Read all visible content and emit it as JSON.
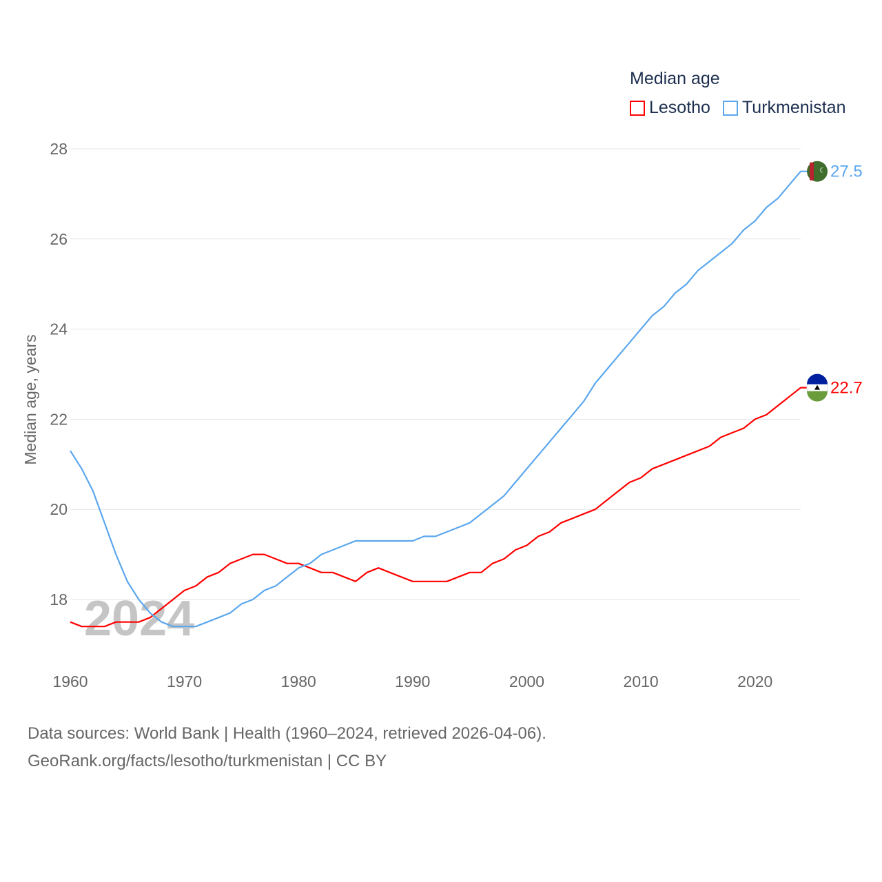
{
  "chart_data": {
    "type": "line",
    "title": "Median age",
    "ylabel": "Median age, years",
    "xlabel": "",
    "xlim": [
      1960,
      2024
    ],
    "ylim": [
      17,
      28
    ],
    "yticks": [
      18,
      20,
      22,
      24,
      26,
      28
    ],
    "xticks": [
      1960,
      1970,
      1980,
      1990,
      2000,
      2010,
      2020
    ],
    "grid": true,
    "legend_placement": "top-right",
    "year_watermark": "2024",
    "x": [
      1960,
      1961,
      1962,
      1963,
      1964,
      1965,
      1966,
      1967,
      1968,
      1969,
      1970,
      1971,
      1972,
      1973,
      1974,
      1975,
      1976,
      1977,
      1978,
      1979,
      1980,
      1981,
      1982,
      1983,
      1984,
      1985,
      1986,
      1987,
      1988,
      1989,
      1990,
      1991,
      1992,
      1993,
      1994,
      1995,
      1996,
      1997,
      1998,
      1999,
      2000,
      2001,
      2002,
      2003,
      2004,
      2005,
      2006,
      2007,
      2008,
      2009,
      2010,
      2011,
      2012,
      2013,
      2014,
      2015,
      2016,
      2017,
      2018,
      2019,
      2020,
      2021,
      2022,
      2023,
      2024
    ],
    "series": [
      {
        "name": "Lesotho",
        "color": "#ff0000",
        "end_label": "22.7",
        "values": [
          17.5,
          17.4,
          17.4,
          17.4,
          17.5,
          17.5,
          17.5,
          17.6,
          17.8,
          18.0,
          18.2,
          18.3,
          18.5,
          18.6,
          18.8,
          18.9,
          19.0,
          19.0,
          18.9,
          18.8,
          18.8,
          18.7,
          18.6,
          18.6,
          18.5,
          18.4,
          18.6,
          18.7,
          18.6,
          18.5,
          18.4,
          18.4,
          18.4,
          18.4,
          18.5,
          18.6,
          18.6,
          18.8,
          18.9,
          19.1,
          19.2,
          19.4,
          19.5,
          19.7,
          19.8,
          19.9,
          20.0,
          20.2,
          20.4,
          20.6,
          20.7,
          20.9,
          21.0,
          21.1,
          21.2,
          21.3,
          21.4,
          21.6,
          21.7,
          21.8,
          22.0,
          22.1,
          22.3,
          22.5,
          22.7
        ]
      },
      {
        "name": "Turkmenistan",
        "color": "#5ba7ee",
        "end_label": "27.5",
        "values": [
          21.3,
          20.9,
          20.4,
          19.7,
          19.0,
          18.4,
          18.0,
          17.7,
          17.5,
          17.4,
          17.4,
          17.4,
          17.5,
          17.6,
          17.7,
          17.9,
          18.0,
          18.2,
          18.3,
          18.5,
          18.7,
          18.8,
          19.0,
          19.1,
          19.2,
          19.3,
          19.3,
          19.3,
          19.3,
          19.3,
          19.3,
          19.4,
          19.4,
          19.5,
          19.6,
          19.7,
          19.9,
          20.1,
          20.3,
          20.6,
          20.9,
          21.2,
          21.5,
          21.8,
          22.1,
          22.4,
          22.8,
          23.1,
          23.4,
          23.7,
          24.0,
          24.3,
          24.5,
          24.8,
          25.0,
          25.3,
          25.5,
          25.7,
          25.9,
          26.2,
          26.4,
          26.7,
          26.9,
          27.2,
          27.5
        ]
      }
    ]
  },
  "source": {
    "line1": "Data sources: World Bank | Health (1960–2024, retrieved 2026-04-06).",
    "line2": "GeoRank.org/facts/lesotho/turkmenistan | CC BY"
  }
}
